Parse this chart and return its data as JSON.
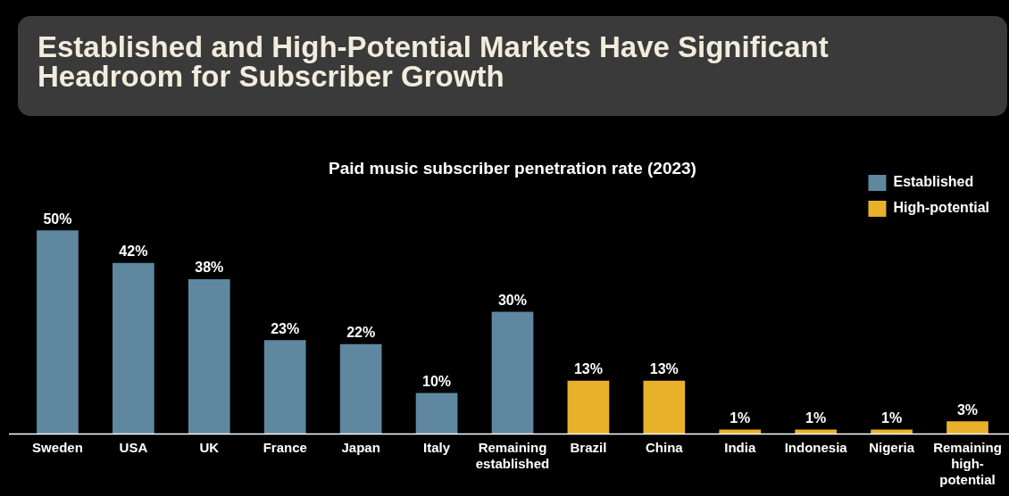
{
  "chart_data": {
    "type": "bar",
    "title": "Established and High-Potential Markets Have Significant Headroom for Subscriber Growth",
    "subtitle": "Paid music subscriber penetration rate (2023)",
    "categories": [
      "Sweden",
      "USA",
      "UK",
      "France",
      "Japan",
      "Italy",
      "Remaining established",
      "Brazil",
      "China",
      "India",
      "Indonesia",
      "Nigeria",
      "Remaining high-potential"
    ],
    "series": [
      {
        "name": "Established",
        "color": "#5f87a0",
        "values": [
          50,
          42,
          38,
          23,
          22,
          10,
          30,
          null,
          null,
          null,
          null,
          null,
          null
        ],
        "value_labels": [
          "50%",
          "42%",
          "38%",
          "23%",
          "22%",
          "10%",
          "30%",
          null,
          null,
          null,
          null,
          null,
          null
        ]
      },
      {
        "name": "High-potential",
        "color": "#e8b12a",
        "values": [
          null,
          null,
          null,
          null,
          null,
          null,
          null,
          13,
          13,
          1,
          1,
          1,
          3
        ],
        "value_labels": [
          null,
          null,
          null,
          null,
          null,
          null,
          null,
          "13%",
          "13%",
          "1%",
          "1%",
          "1%",
          "3%"
        ]
      }
    ],
    "legend": "top right"
  }
}
